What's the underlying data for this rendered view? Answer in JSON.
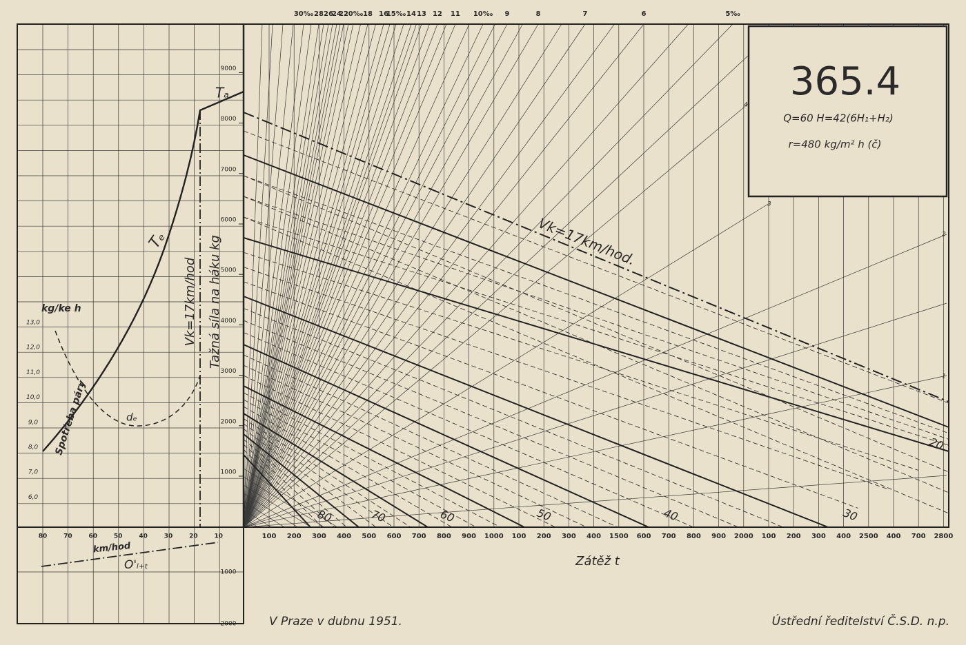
{
  "top_gradient_labels": [
    "30‰",
    "28",
    "26",
    "24",
    "22",
    "20‰",
    "18",
    "16",
    "15‰",
    "14",
    "13",
    "12",
    "11",
    "10‰",
    "9",
    "8",
    "7",
    "6",
    "5‰"
  ],
  "box": {
    "number": "365.4",
    "formula_q": "Q=60 H=42(6H₁+H₂)",
    "formula_r": "r=480 kg/m² h (č)"
  },
  "force_axis_labels": [
    "1000",
    "2000",
    "3000",
    "4000",
    "5000",
    "6000",
    "7000",
    "8000",
    "9000"
  ],
  "steam_axis_title": "kg/ke h",
  "steam_axis_labels": [
    "13,0",
    "12,0",
    "11,0",
    "10,0",
    "9,0",
    "8,0",
    "7,0",
    "6,0"
  ],
  "speed_axis_title": "km/hod",
  "speed_axis_labels": [
    "80",
    "70",
    "60",
    "50",
    "40",
    "30",
    "20",
    "10"
  ],
  "lower_force_labels": [
    "1000",
    "2000"
  ],
  "load_axis_title": "Zátěž t",
  "load_axis_labels": [
    "100",
    "200",
    "300",
    "400",
    "500",
    "600",
    "700",
    "800",
    "900",
    "1000",
    "100",
    "200",
    "300",
    "400",
    "1500",
    "600",
    "700",
    "800",
    "900",
    "2000",
    "100",
    "200",
    "300",
    "400",
    "2500",
    "400",
    "700",
    "2800"
  ],
  "curve_labels": {
    "ta": "Tₐ",
    "te": "Tₑ",
    "de": "dₑ",
    "steam": "Spotřeba páry",
    "o": "O'ₗ₊ₜ"
  },
  "vertical_titles": {
    "speed": "Vk=17km/hod",
    "force": "Tažná síla na háku kg"
  },
  "diagonal_title": "Vk=17km/hod.",
  "load_line_labels": [
    "80",
    "70",
    "60",
    "50",
    "40",
    "30",
    "20"
  ],
  "side_gradient_labels": [
    "4",
    "3",
    "2",
    "1"
  ],
  "footer": {
    "place": "V Praze v dubnu 1951.",
    "issuer": "Ústřední ředitelství Č.S.D. n.p."
  }
}
